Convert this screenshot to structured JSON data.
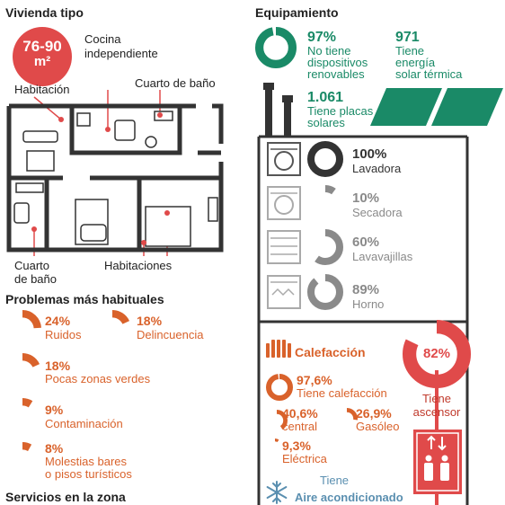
{
  "vivienda": {
    "title": "Vivienda tipo",
    "size_value": "76-90",
    "size_unit": "m²",
    "labels": {
      "habitacion": "Habitación",
      "cocina_1": "Cocina",
      "cocina_2": "independiente",
      "bano_top": "Cuarto de baño",
      "bano_bottom_1": "Cuarto",
      "bano_bottom_2": "de baño",
      "habitaciones": "Habitaciones"
    }
  },
  "problemas": {
    "title": "Problemas más habituales",
    "items": [
      {
        "pct": "24%",
        "label1": "Ruidos",
        "label2": "",
        "value": 24
      },
      {
        "pct": "18%",
        "label1": "Delincuencia",
        "label2": "",
        "value": 18
      },
      {
        "pct": "18%",
        "label1": "Pocas zonas verdes",
        "label2": "",
        "value": 18
      },
      {
        "pct": "9%",
        "label1": "Contaminación",
        "label2": "",
        "value": 9
      },
      {
        "pct": "8%",
        "label1": "Molestias bares",
        "label2": "o pisos turísticos",
        "value": 8
      }
    ]
  },
  "servicios": {
    "title": "Servicios en la zona"
  },
  "equipamiento": {
    "title": "Equipamiento",
    "renovables": {
      "pct": "97%",
      "l1": "No tiene",
      "l2": "dispositivos",
      "l3": "renovables",
      "value": 97
    },
    "solar_termica": {
      "num": "971",
      "l1": "Tiene",
      "l2": "energía",
      "l3": "solar térmica"
    },
    "placas": {
      "num": "1.061",
      "l1": "Tiene placas",
      "l2": "solares"
    },
    "electro": [
      {
        "pct": "100%",
        "label": "Lavadora",
        "value": 100,
        "color": "#333333"
      },
      {
        "pct": "10%",
        "label": "Secadora",
        "value": 10,
        "color": "#8a8a8a"
      },
      {
        "pct": "60%",
        "label": "Lavavajillas",
        "value": 60,
        "color": "#8a8a8a"
      },
      {
        "pct": "89%",
        "label": "Horno",
        "value": 89,
        "color": "#8a8a8a"
      }
    ],
    "calefaccion": {
      "title": "Calefacción",
      "tiene": {
        "pct": "97,6%",
        "label": "Tiene calefacción",
        "value": 97.6
      },
      "central": {
        "pct": "40,6%",
        "label": "central",
        "value": 40.6
      },
      "gasoleo": {
        "pct": "26,9%",
        "label": "Gasóleo",
        "value": 26.9
      },
      "electrica": {
        "pct": "9,3%",
        "label": "Eléctrica",
        "value": 9.3
      }
    },
    "aire": {
      "l1": "Tiene",
      "l2": "Aire acondicionado"
    },
    "ascensor": {
      "pct": "82%",
      "l1": "Tiene",
      "l2": "ascensor",
      "value": 82
    }
  },
  "colors": {
    "orange": "#d9622b",
    "green": "#1a8a67",
    "red": "#e04a4a",
    "dark": "#333333",
    "gray": "#8a8a8a",
    "blue": "#5a8fb0"
  }
}
